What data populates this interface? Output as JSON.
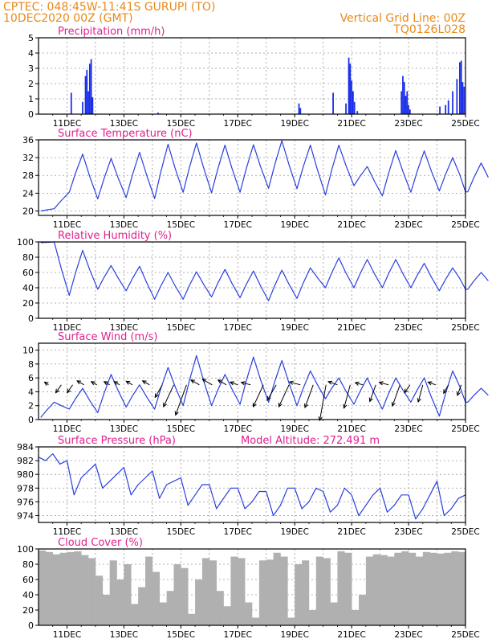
{
  "header": {
    "left_line1": "CPTEC:   048:45W-11:41S   GURUPI (TO)",
    "left_line2": "10DEC2020 00Z (GMT)",
    "right_line1": "Vertical Grid Line: 00Z",
    "right_line2": "TQ0126L028"
  },
  "colors": {
    "header": "#e8891a",
    "title": "#e0208f",
    "line": "#2a3fe0",
    "bar": "#1a2ee8",
    "cloud": "#b0b0b0",
    "grid": "#999999"
  },
  "x_axis": {
    "start_day": 10,
    "end_day": 25,
    "tick_labels": [
      "11DEC",
      "13DEC",
      "15DEC",
      "17DEC",
      "19DEC",
      "21DEC",
      "23DEC",
      "25DEC"
    ]
  },
  "panels": [
    {
      "id": "precip",
      "title": "Precipitation (mm/h)",
      "yticks": [
        "0",
        "1",
        "2",
        "3",
        "4",
        "5"
      ]
    },
    {
      "id": "temp",
      "title": "Surface Temperature (nC)",
      "yticks": [
        "20",
        "24",
        "28",
        "32",
        "36"
      ]
    },
    {
      "id": "rh",
      "title": "Relative Humidity (%)",
      "yticks": [
        "0",
        "20",
        "40",
        "60",
        "80",
        "100"
      ]
    },
    {
      "id": "wind",
      "title": "Surface Wind (m/s)",
      "yticks": [
        "0",
        "2",
        "4",
        "6",
        "8",
        "10"
      ]
    },
    {
      "id": "pres",
      "title": "Surface Pressure (hPa)",
      "extra": "Model Altitude: 272.491 m",
      "yticks": [
        "974",
        "976",
        "978",
        "980",
        "982",
        "984"
      ]
    },
    {
      "id": "cloud",
      "title": "Cloud Cover (%)",
      "yticks": [
        "0",
        "20",
        "40",
        "60",
        "80",
        "100"
      ]
    }
  ],
  "chart_data": [
    {
      "type": "bar",
      "title": "Precipitation (mm/h)",
      "ylim": [
        0,
        5
      ],
      "x": [
        11.15,
        11.55,
        11.65,
        11.7,
        11.75,
        11.8,
        11.85,
        11.9,
        14.2,
        19.15,
        19.2,
        20.35,
        20.8,
        20.9,
        20.95,
        21.0,
        21.05,
        21.1,
        21.2,
        22.75,
        22.8,
        22.85,
        22.9,
        22.95,
        23.0,
        23.05,
        24.1,
        24.3,
        24.4,
        24.55,
        24.7,
        24.8,
        24.85,
        24.9,
        24.95
      ],
      "values": [
        1.4,
        0.8,
        2.5,
        2.9,
        1.5,
        3.3,
        3.6,
        1.1,
        0.1,
        0.7,
        0.4,
        1.4,
        0.7,
        3.7,
        3.3,
        2.2,
        1.5,
        0.8,
        0.2,
        1.5,
        2.5,
        2.1,
        1.2,
        1.5,
        0.6,
        0.3,
        0.5,
        0.6,
        0.9,
        1.5,
        2.3,
        3.4,
        3.5,
        2.1,
        1.8
      ]
    },
    {
      "type": "line",
      "title": "Surface Temperature (nC)",
      "ylim": [
        19,
        36
      ],
      "day_max": [
        20.5,
        32.8,
        31.8,
        33.2,
        35.0,
        35.3,
        34.8,
        34.9,
        35.8,
        34.8,
        34.8,
        30.0,
        33.6,
        33.5,
        32.0,
        30.8
      ],
      "day_min": [
        20.0,
        24.2,
        22.7,
        23.0,
        22.8,
        24.2,
        24.1,
        24.2,
        25.1,
        25.0,
        23.6,
        25.7,
        23.4,
        24.2,
        24.5,
        24.3
      ]
    },
    {
      "type": "line",
      "title": "Relative Humidity (%)",
      "ylim": [
        0,
        100
      ],
      "day_max": [
        100,
        89,
        69,
        68,
        60,
        61,
        64,
        62,
        63,
        66,
        79,
        77,
        77,
        72,
        66,
        60
      ],
      "day_min": [
        99,
        30,
        38,
        36,
        25,
        25,
        28,
        27,
        23,
        26,
        40,
        40,
        40,
        40,
        36,
        38
      ]
    },
    {
      "type": "line",
      "title": "Surface Wind (m/s)",
      "ylim": [
        0,
        11
      ],
      "day_max": [
        2.5,
        4.5,
        6.5,
        5.0,
        7.5,
        9.2,
        6.5,
        9.0,
        8.5,
        7.0,
        6.0,
        6.0,
        6.0,
        6.0,
        7.0,
        4.5
      ],
      "day_min": [
        0.3,
        1.5,
        1.0,
        1.8,
        1.5,
        2.0,
        2.0,
        2.2,
        2.5,
        2.0,
        3.0,
        2.2,
        1.5,
        2.5,
        0.5,
        2.5
      ],
      "arrows": {
        "x": [
          10.35,
          10.8,
          11.2,
          11.6,
          12.05,
          12.5,
          12.85,
          13.3,
          13.9,
          14.35,
          14.75,
          15.2,
          15.65,
          16.1,
          16.6,
          17.0,
          17.45,
          17.9,
          18.35,
          18.8,
          19.2,
          19.65,
          20.1,
          20.5,
          20.95,
          21.4,
          21.85,
          22.3,
          22.7,
          23.05,
          23.5,
          23.95,
          24.4,
          24.85
        ],
        "angle_deg": [
          145,
          -125,
          -125,
          150,
          150,
          150,
          150,
          150,
          150,
          -120,
          -115,
          -110,
          150,
          150,
          150,
          160,
          165,
          -115,
          -120,
          -115,
          165,
          -110,
          -100,
          160,
          -105,
          165,
          -110,
          165,
          -110,
          -125,
          -105,
          160,
          -120,
          -110
        ],
        "length": [
          6,
          12,
          12,
          10,
          8,
          8,
          8,
          9,
          10,
          18,
          30,
          40,
          12,
          14,
          12,
          10,
          12,
          30,
          22,
          30,
          14,
          30,
          45,
          12,
          30,
          10,
          22,
          12,
          28,
          12,
          22,
          10,
          12,
          14
        ]
      }
    },
    {
      "type": "line",
      "title": "Surface Pressure (hPa)",
      "ylim": [
        973,
        984
      ],
      "x": [
        10.0,
        10.25,
        10.5,
        10.75,
        11.0,
        11.25,
        11.5,
        11.75,
        12.0,
        12.25,
        12.5,
        12.75,
        13.0,
        13.25,
        13.5,
        13.75,
        14.0,
        14.25,
        14.5,
        14.75,
        15.0,
        15.25,
        15.5,
        15.75,
        16.0,
        16.25,
        16.5,
        16.75,
        17.0,
        17.25,
        17.5,
        17.75,
        18.0,
        18.25,
        18.5,
        18.75,
        19.0,
        19.25,
        19.5,
        19.75,
        20.0,
        20.25,
        20.5,
        20.75,
        21.0,
        21.25,
        21.5,
        21.75,
        22.0,
        22.25,
        22.5,
        22.75,
        23.0,
        23.25,
        23.5,
        23.75,
        24.0,
        24.25,
        24.5,
        24.75,
        25.0
      ],
      "values": [
        982.5,
        982.0,
        983.0,
        981.5,
        982.0,
        977.0,
        979.5,
        980.5,
        981.5,
        978.0,
        979.0,
        980.0,
        981.0,
        977.0,
        978.5,
        979.5,
        980.5,
        976.5,
        978.5,
        979.0,
        979.5,
        975.5,
        977.0,
        978.5,
        978.5,
        975.0,
        976.5,
        978.0,
        978.0,
        975.0,
        976.0,
        977.5,
        977.5,
        974.0,
        975.5,
        978.0,
        978.0,
        975.0,
        976.0,
        978.0,
        977.5,
        974.5,
        975.5,
        978.0,
        977.0,
        974.0,
        975.5,
        977.0,
        978.0,
        974.5,
        975.5,
        977.0,
        977.0,
        973.5,
        975.0,
        977.0,
        979.0,
        974.0,
        975.0,
        976.5,
        977.0
      ]
    },
    {
      "type": "area",
      "title": "Cloud Cover (%)",
      "ylim": [
        0,
        100
      ],
      "x": [
        10.0,
        10.25,
        10.5,
        10.75,
        11.0,
        11.25,
        11.5,
        11.75,
        12.0,
        12.25,
        12.5,
        12.75,
        13.0,
        13.25,
        13.5,
        13.75,
        14.0,
        14.25,
        14.5,
        14.75,
        15.0,
        15.25,
        15.5,
        15.75,
        16.0,
        16.25,
        16.5,
        16.75,
        17.0,
        17.25,
        17.5,
        17.75,
        18.0,
        18.25,
        18.5,
        18.75,
        19.0,
        19.25,
        19.5,
        19.75,
        20.0,
        20.25,
        20.5,
        20.75,
        21.0,
        21.25,
        21.5,
        21.75,
        22.0,
        22.25,
        22.5,
        22.75,
        23.0,
        23.25,
        23.5,
        23.75,
        24.0,
        24.25,
        24.5,
        24.75,
        25.0
      ],
      "values": [
        98,
        96,
        93,
        95,
        96,
        97,
        92,
        88,
        65,
        40,
        85,
        60,
        80,
        28,
        50,
        90,
        70,
        30,
        45,
        80,
        75,
        15,
        60,
        88,
        85,
        45,
        25,
        90,
        88,
        30,
        10,
        85,
        86,
        95,
        90,
        10,
        80,
        85,
        20,
        90,
        88,
        30,
        97,
        95,
        20,
        40,
        90,
        93,
        92,
        90,
        95,
        97,
        95,
        90,
        96,
        95,
        94,
        95,
        97,
        96,
        98
      ]
    }
  ]
}
